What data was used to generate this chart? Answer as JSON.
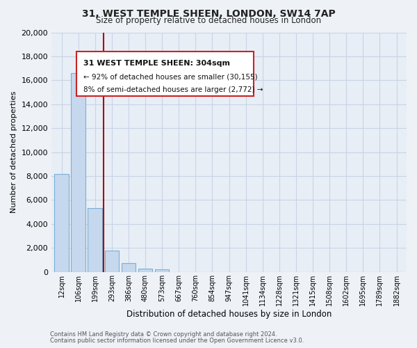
{
  "title_line1": "31, WEST TEMPLE SHEEN, LONDON, SW14 7AP",
  "title_line2": "Size of property relative to detached houses in London",
  "xlabel": "Distribution of detached houses by size in London",
  "ylabel": "Number of detached properties",
  "bar_labels": [
    "12sqm",
    "106sqm",
    "199sqm",
    "293sqm",
    "386sqm",
    "480sqm",
    "573sqm",
    "667sqm",
    "760sqm",
    "854sqm",
    "947sqm",
    "1041sqm",
    "1134sqm",
    "1228sqm",
    "1321sqm",
    "1415sqm",
    "1508sqm",
    "1602sqm",
    "1695sqm",
    "1789sqm",
    "1882sqm"
  ],
  "bar_values": [
    8200,
    16600,
    5300,
    1800,
    750,
    300,
    230,
    0,
    0,
    0,
    0,
    0,
    0,
    0,
    0,
    0,
    0,
    0,
    0,
    0,
    0
  ],
  "bar_color": "#c5d8ed",
  "bar_edge_color": "#7bafd4",
  "ylim": [
    0,
    20000
  ],
  "yticks": [
    0,
    2000,
    4000,
    6000,
    8000,
    10000,
    12000,
    14000,
    16000,
    18000,
    20000
  ],
  "annotation_line1": "31 WEST TEMPLE SHEEN: 304sqm",
  "annotation_line2": "← 92% of detached houses are smaller (30,155)",
  "annotation_line3": "8% of semi-detached houses are larger (2,772) →",
  "property_bar_index": 2,
  "property_line_color": "#aa0000",
  "footer_line1": "Contains HM Land Registry data © Crown copyright and database right 2024.",
  "footer_line2": "Contains public sector information licensed under the Open Government Licence v3.0.",
  "bg_color": "#eef2f7",
  "plot_bg_color": "#e8eef6",
  "grid_color": "#c8d4e4",
  "annotation_box_color": "#cc2222"
}
